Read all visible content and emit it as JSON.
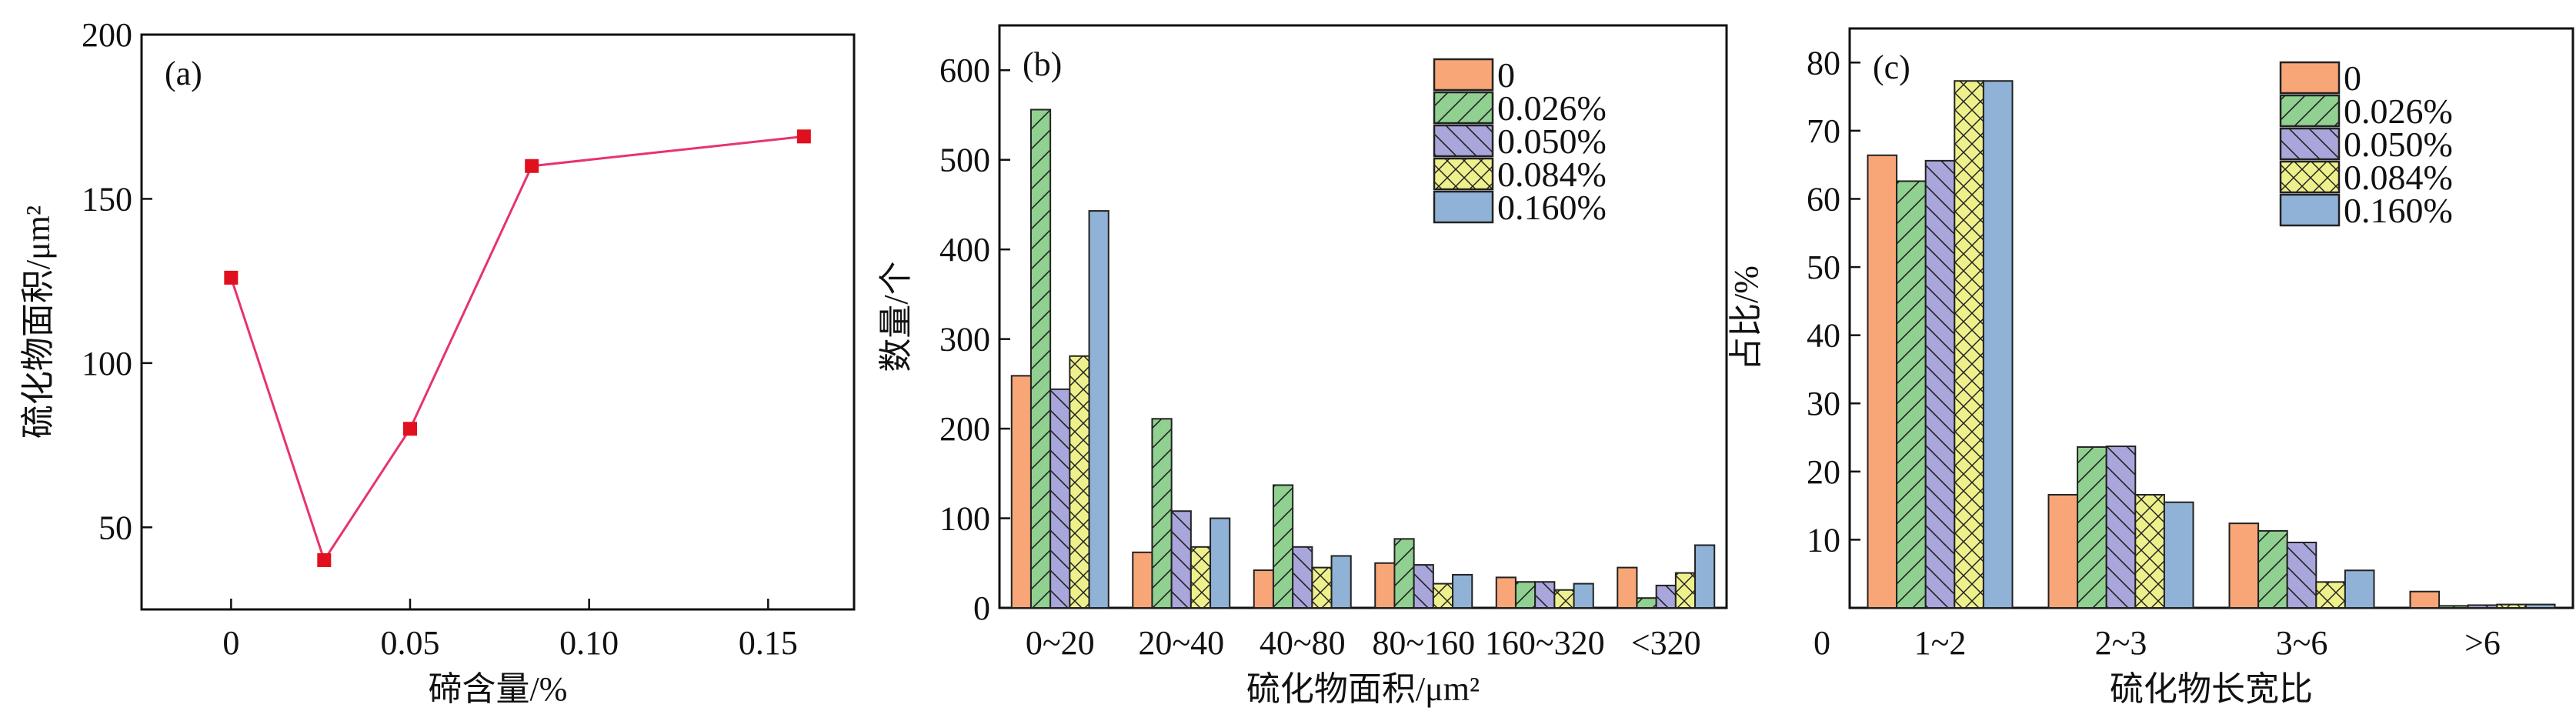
{
  "colors": {
    "line": "#e8336b",
    "marker": "#e0101e",
    "series": [
      "#f8a677",
      "#90d090",
      "#a9a6dc",
      "#eef08c",
      "#8fb2d6"
    ]
  },
  "chart_data": [
    {
      "type": "line",
      "panel_label": "(a)",
      "xlabel": "碲含量/%",
      "ylabel": "硫化物面积/μm²",
      "xlim": [
        -0.025,
        0.174
      ],
      "ylim": [
        25,
        200
      ],
      "xticks": [
        0,
        0.05,
        0.1,
        0.15
      ],
      "xtick_labels": [
        "0",
        "0.05",
        "0.10",
        "0.15"
      ],
      "yticks": [
        50,
        100,
        150,
        200
      ],
      "ytick_labels": [
        "50",
        "100",
        "150",
        "200"
      ],
      "x": [
        0,
        0.026,
        0.05,
        0.084,
        0.16
      ],
      "y": [
        126,
        40,
        80,
        160,
        169
      ],
      "marker": "square"
    },
    {
      "type": "bar",
      "panel_label": "(b)",
      "xlabel": "硫化物面积/μm²",
      "ylabel": "数量/个",
      "ylim": [
        0,
        650
      ],
      "yticks": [
        0,
        100,
        200,
        300,
        400,
        500,
        600
      ],
      "ytick_labels": [
        "0",
        "100",
        "200",
        "300",
        "400",
        "500",
        "600"
      ],
      "categories": [
        "0~20",
        "20~40",
        "40~80",
        "80~160",
        "160~320",
        "<320"
      ],
      "legend_position": "top-right",
      "series": [
        {
          "name": "0",
          "pattern": "solid",
          "values": [
            259,
            62,
            42,
            50,
            34,
            45
          ]
        },
        {
          "name": "0.026%",
          "pattern": "forward-diagonal",
          "values": [
            556,
            211,
            137,
            77,
            29,
            11
          ]
        },
        {
          "name": "0.050%",
          "pattern": "back-diagonal",
          "values": [
            244,
            108,
            68,
            48,
            29,
            25
          ]
        },
        {
          "name": "0.084%",
          "pattern": "crosshatch",
          "values": [
            281,
            68,
            45,
            27,
            20,
            39
          ]
        },
        {
          "name": "0.160%",
          "pattern": "solid",
          "values": [
            443,
            100,
            58,
            37,
            27,
            70
          ]
        }
      ]
    },
    {
      "type": "bar",
      "panel_label": "(c)",
      "xlabel": "硫化物长宽比",
      "ylabel": "占比/%",
      "ylim": [
        0,
        85
      ],
      "yticks": [
        10,
        20,
        30,
        40,
        50,
        60,
        70,
        80
      ],
      "ytick_labels": [
        "10",
        "20",
        "30",
        "40",
        "50",
        "60",
        "70",
        "80"
      ],
      "zero_label": "0",
      "categories": [
        "1~2",
        "2~3",
        "3~6",
        ">6"
      ],
      "legend_position": "top-right",
      "series": [
        {
          "name": "0",
          "pattern": "solid",
          "values": [
            66.4,
            16.6,
            12.4,
            2.4
          ]
        },
        {
          "name": "0.026%",
          "pattern": "forward-diagonal",
          "values": [
            62.6,
            23.6,
            11.3,
            0.3
          ]
        },
        {
          "name": "0.050%",
          "pattern": "back-diagonal",
          "values": [
            65.6,
            23.7,
            9.6,
            0.4
          ]
        },
        {
          "name": "0.084%",
          "pattern": "crosshatch",
          "values": [
            77.3,
            16.6,
            3.8,
            0.5
          ]
        },
        {
          "name": "0.160%",
          "pattern": "solid",
          "values": [
            77.3,
            15.5,
            5.5,
            0.5
          ]
        }
      ]
    }
  ]
}
